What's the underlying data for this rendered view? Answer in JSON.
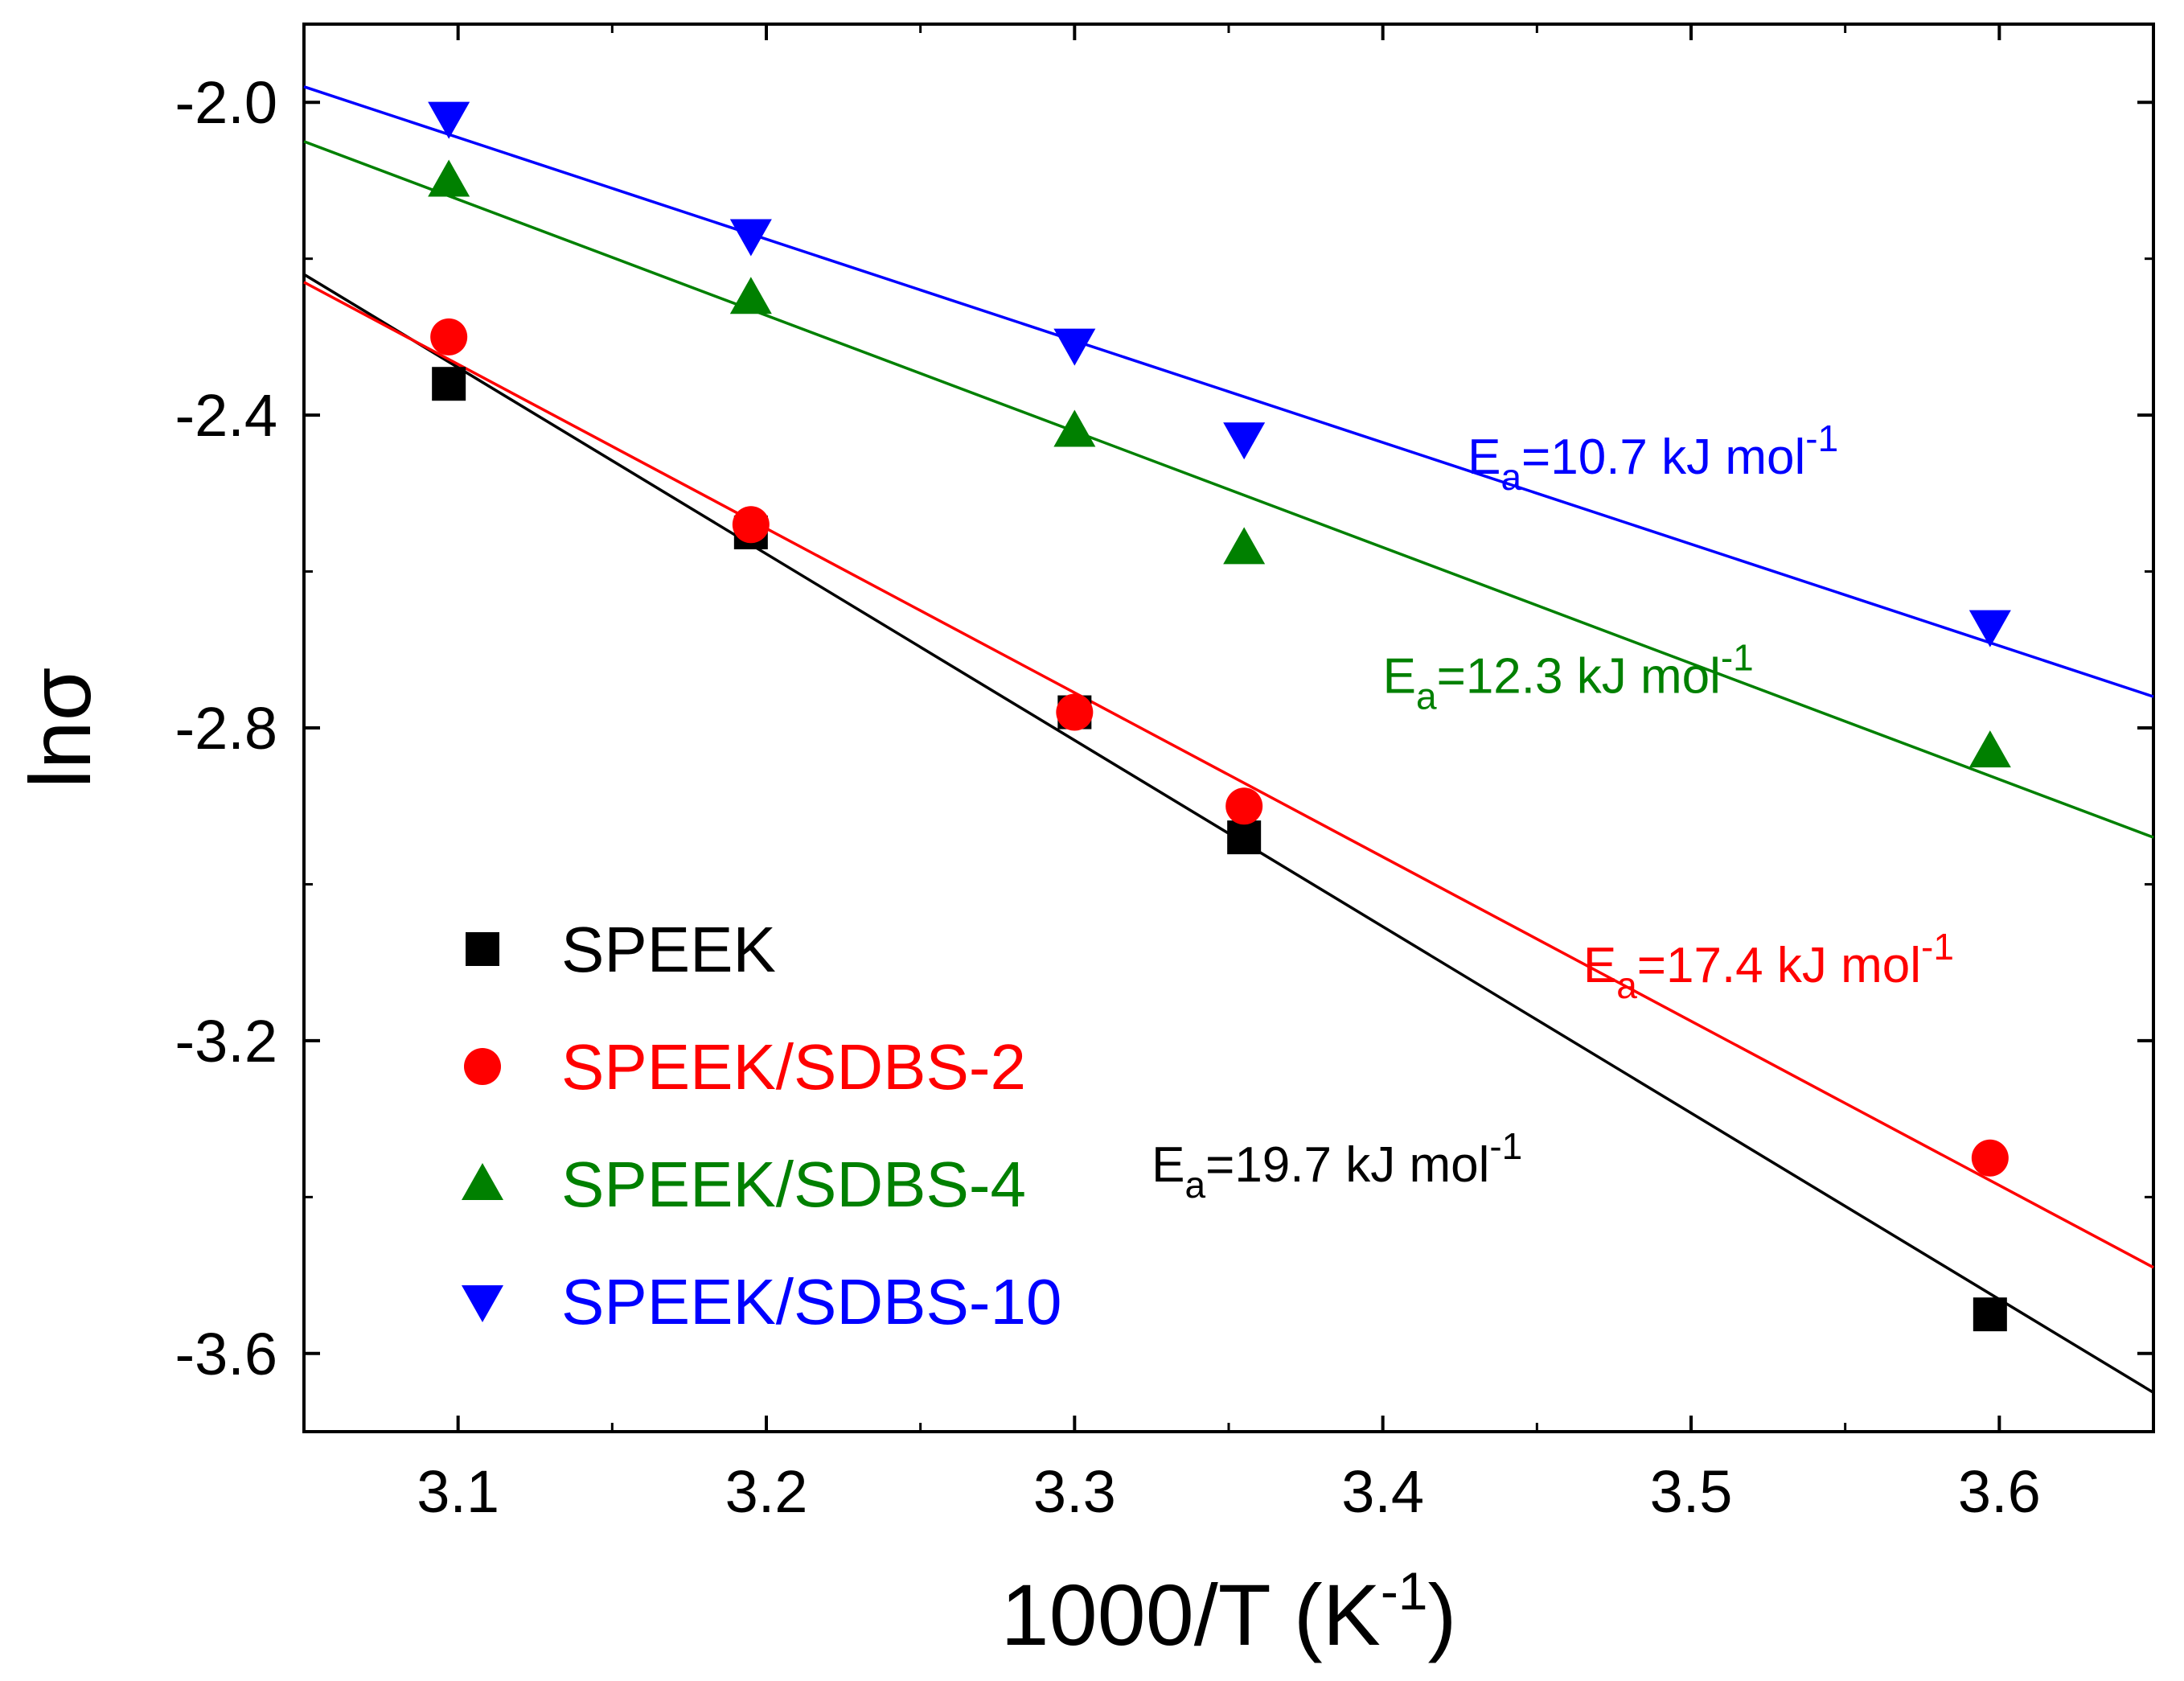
{
  "chart_data": {
    "type": "scatter",
    "xlabel": "1000/T (K",
    "xlabel_sup": "-1",
    "xlabel_close": ")",
    "ylabel": "lnσ",
    "xlim": [
      3.05,
      3.65
    ],
    "ylim": [
      -3.7,
      -1.9
    ],
    "x_ticks": [
      3.1,
      3.2,
      3.3,
      3.4,
      3.5,
      3.6
    ],
    "x_tick_labels": [
      "3.1",
      "3.2",
      "3.3",
      "3.4",
      "3.5",
      "3.6"
    ],
    "y_ticks": [
      -2.0,
      -2.4,
      -2.8,
      -3.2,
      -3.6
    ],
    "y_tick_labels": [
      "-2.0",
      "-2.4",
      "-2.8",
      "-3.2",
      "-3.6"
    ],
    "grid": false,
    "legend_position": "bottom-left",
    "series": [
      {
        "name": "SPEEK",
        "color": "#000000",
        "marker": "square",
        "x": [
          3.097,
          3.195,
          3.3,
          3.355,
          3.597
        ],
        "y": [
          -2.36,
          -2.55,
          -2.78,
          -2.94,
          -3.55
        ],
        "fit": {
          "x": [
            3.05,
            3.65
          ],
          "y": [
            -2.22,
            -3.65
          ]
        },
        "ea": {
          "prefix": "E",
          "sub": "a",
          "value": "=19.7 kJ mol",
          "sup": "-1",
          "at": [
            3.325,
            -3.38
          ]
        }
      },
      {
        "name": "SPEEK/SDBS-2",
        "color": "#ff0000",
        "marker": "circle",
        "x": [
          3.097,
          3.195,
          3.3,
          3.355,
          3.597
        ],
        "y": [
          -2.3,
          -2.54,
          -2.78,
          -2.9,
          -3.35
        ],
        "fit": {
          "x": [
            3.05,
            3.65
          ],
          "y": [
            -2.23,
            -3.49
          ]
        },
        "ea": {
          "prefix": "E",
          "sub": "a",
          "value": "=17.4 kJ mol",
          "sup": "-1",
          "at": [
            3.465,
            -3.125
          ]
        }
      },
      {
        "name": "SPEEK/SDBS-4",
        "color": "#008000",
        "marker": "triangle-up",
        "x": [
          3.097,
          3.195,
          3.3,
          3.355,
          3.597
        ],
        "y": [
          -2.1,
          -2.25,
          -2.42,
          -2.57,
          -2.83
        ],
        "fit": {
          "x": [
            3.05,
            3.65
          ],
          "y": [
            -2.05,
            -2.94
          ]
        },
        "ea": {
          "prefix": "E",
          "sub": "a",
          "value": "=12.3 kJ mol",
          "sup": "-1",
          "at": [
            3.4,
            -2.755
          ]
        }
      },
      {
        "name": "SPEEK/SDBS-10",
        "color": "#0000ff",
        "marker": "triangle-down",
        "x": [
          3.097,
          3.195,
          3.3,
          3.355,
          3.597
        ],
        "y": [
          -2.02,
          -2.17,
          -2.31,
          -2.43,
          -2.67
        ],
        "fit": {
          "x": [
            3.05,
            3.65
          ],
          "y": [
            -1.98,
            -2.76
          ]
        },
        "ea": {
          "prefix": "E",
          "sub": "a",
          "value": "=10.7 kJ mol",
          "sup": "-1",
          "at": [
            3.4275,
            -2.475
          ]
        }
      }
    ]
  }
}
